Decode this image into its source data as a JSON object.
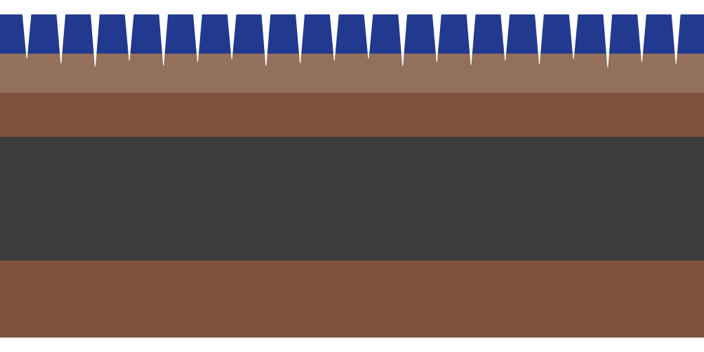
{
  "colors": {
    "sky_band": "#213a8f",
    "top_ground": "#93705c",
    "ground": "#7f523e",
    "road": "#3d3d3d",
    "spikes": "#ffffff",
    "background": "#ffffff"
  },
  "icons": [
    "spike-icon"
  ]
}
